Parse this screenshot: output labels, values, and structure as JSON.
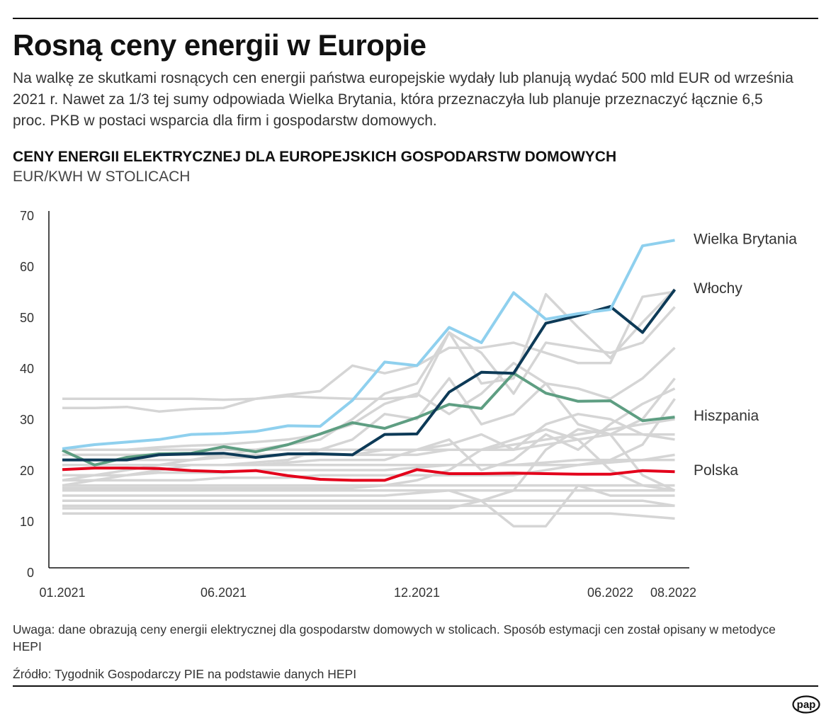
{
  "title": "Rosną ceny energii w Europie",
  "lead": "Na walkę ze skutkami rosnących cen energii państwa europejskie wydały lub planują wydać 500 mld EUR od września 2021 r. Nawet za 1/3 tej sumy odpowiada Wielka Brytania, która przeznaczyła lub planuje przeznaczyć łącznie 6,5 proc. PKB w postaci wsparcia dla firm i gospodarstw domowych.",
  "note": "Uwaga: dane obrazują ceny energii elektrycznej dla gospodarstw domowych w stolicach. Sposób estymacji cen został opisany w metodyce HEPI",
  "source": "Źródło: Tygodnik Gospodarczy PIE na podstawie danych HEPI",
  "logo": "pap",
  "chart_data": {
    "type": "line",
    "title": "CENY ENERGII ELEKTRYCZNEJ DLA EUROPEJSKICH GOSPODARSTW DOMOWYCH",
    "subtitle": "EUR/KWH W STOLICACH",
    "ylim": [
      0,
      70
    ],
    "yticks": [
      "0",
      "10",
      "20",
      "30",
      "40",
      "50",
      "60",
      "70"
    ],
    "x": [
      "01.2021",
      "02.2021",
      "03.2021",
      "04.2021",
      "05.2021",
      "06.2021",
      "07.2021",
      "08.2021",
      "09.2021",
      "10.2021",
      "11.2021",
      "12.2021",
      "01.2022",
      "02.2022",
      "03.2022",
      "04.2022",
      "05.2022",
      "06.2022",
      "07.2022",
      "08.2022"
    ],
    "xticks": [
      {
        "label": "01.2021",
        "index": 0
      },
      {
        "label": "06.2021",
        "index": 5
      },
      {
        "label": "12.2021",
        "index": 11
      },
      {
        "label": "06.2022",
        "index": 17
      },
      {
        "label": "08.2022",
        "index": 19
      }
    ],
    "grid": false,
    "legend": "direct labels at line ends (right)",
    "series": [
      {
        "name": "Wielka Brytania",
        "color": "#8fd0ee",
        "values": [
          24.2,
          25,
          25.5,
          26,
          27,
          27.2,
          27.6,
          28.7,
          28.6,
          33.7,
          41.2,
          40.5,
          48,
          45,
          54.8,
          49.6,
          50.7,
          51.5,
          64,
          65.1
        ]
      },
      {
        "name": "Włochy",
        "color": "#0d3a57",
        "values": [
          22,
          22,
          22,
          23,
          23.2,
          23.3,
          22.5,
          23.2,
          23.2,
          23,
          27,
          27.1,
          35.3,
          39.2,
          39,
          48.8,
          50.3,
          52.1,
          47,
          55.4
        ]
      },
      {
        "name": "Hiszpania",
        "color": "#5e9e82",
        "values": [
          23.9,
          21,
          22.5,
          23.2,
          23.3,
          24.6,
          23.6,
          25,
          27.1,
          29.3,
          28.2,
          30.3,
          32.9,
          32.1,
          39,
          35.1,
          33.5,
          33.6,
          29.7,
          30.4
        ]
      },
      {
        "name": "Polska",
        "color": "#e3001b",
        "values": [
          20.1,
          20.4,
          20.4,
          20.3,
          19.9,
          19.7,
          19.9,
          18.9,
          18.2,
          18,
          18,
          20.1,
          19.3,
          19.3,
          19.4,
          19.3,
          19.2,
          19.2,
          19.9,
          19.7
        ]
      }
    ],
    "other_series_color": "#d5d5d5",
    "other_series": [
      [
        34,
        34,
        34,
        34,
        34,
        33.8,
        34,
        34.5,
        34.2,
        34,
        34,
        34.5,
        47,
        37,
        38,
        54.5,
        48,
        42,
        49,
        55.5
      ],
      [
        32.2,
        32.2,
        32.4,
        31.5,
        32,
        32.2,
        34,
        34.8,
        35.5,
        40.5,
        39,
        40.5,
        44,
        44,
        45,
        43,
        41,
        41,
        54,
        55
      ],
      [
        18,
        19,
        20,
        21,
        22,
        23,
        24,
        25,
        26,
        30,
        35,
        37,
        47,
        43,
        35,
        45,
        44,
        43,
        45,
        52
      ],
      [
        24,
        24,
        24,
        24.5,
        24.8,
        25,
        25.5,
        26,
        27,
        29,
        33,
        35,
        31,
        35,
        41,
        37,
        36,
        34,
        38,
        44
      ],
      [
        17,
        18,
        19,
        20,
        21,
        21,
        21.5,
        22,
        24,
        26,
        31,
        30,
        38,
        29,
        31,
        37,
        29,
        27,
        30,
        38
      ],
      [
        24,
        24,
        24,
        24,
        24,
        24,
        24,
        24,
        24,
        24,
        24,
        24,
        24,
        24,
        24,
        25,
        26,
        27,
        27,
        27
      ],
      [
        23,
        23,
        23,
        23,
        23,
        23,
        23,
        23,
        23,
        23,
        23,
        23,
        24,
        24,
        25,
        26,
        27,
        28,
        29,
        30
      ],
      [
        22,
        22,
        22,
        22,
        22,
        22.5,
        22.5,
        23,
        23,
        23,
        24,
        24,
        25,
        27,
        24,
        29,
        31,
        30,
        27,
        26
      ],
      [
        21,
        21,
        21,
        21,
        21,
        21,
        21,
        21.5,
        22,
        22,
        22,
        24,
        26,
        20,
        22,
        27,
        24,
        29,
        33,
        36
      ],
      [
        21,
        21,
        21,
        21,
        21,
        21,
        21,
        21,
        21,
        21,
        21,
        21,
        21,
        21,
        21,
        21.5,
        22,
        22,
        22,
        22
      ],
      [
        19,
        19,
        19,
        19.5,
        19.5,
        19.5,
        20,
        20,
        20,
        20,
        20,
        20.5,
        21,
        21,
        21,
        21,
        21,
        21.5,
        22,
        23
      ],
      [
        18,
        18,
        18,
        18,
        18,
        18.5,
        18.5,
        18.5,
        19,
        19,
        19,
        19,
        19,
        19,
        19,
        20,
        21,
        22,
        25,
        34
      ],
      [
        17,
        17,
        17,
        17,
        17,
        17,
        17,
        17,
        17,
        17,
        17,
        17,
        17,
        17,
        17,
        17,
        17,
        17,
        17,
        17
      ],
      [
        16.5,
        16.5,
        16.5,
        16.5,
        16.5,
        16.5,
        16.5,
        16.5,
        16.5,
        16.5,
        17,
        18,
        20,
        24,
        26,
        28,
        26,
        20,
        17,
        16
      ],
      [
        16,
        16,
        16,
        16,
        16,
        16,
        16,
        16,
        16,
        16,
        16,
        16,
        16,
        16,
        16,
        16,
        16,
        16,
        16,
        16
      ],
      [
        15,
        15,
        15,
        15,
        15,
        15,
        15,
        15,
        15,
        15,
        15,
        15.5,
        16,
        14,
        9,
        9,
        17,
        15,
        15,
        15
      ],
      [
        14,
        14,
        14,
        14,
        14,
        14,
        14,
        14,
        14,
        14,
        14,
        14,
        14,
        14,
        14,
        14,
        14,
        14,
        14,
        13
      ],
      [
        13,
        13,
        13,
        13,
        13,
        13,
        13,
        13,
        13,
        13,
        13,
        13,
        13,
        13,
        13,
        13,
        13,
        13,
        13,
        13
      ],
      [
        11.5,
        11.5,
        11.5,
        11.5,
        11.5,
        11.5,
        11.5,
        11.5,
        11.5,
        11.5,
        11.5,
        11.5,
        11.5,
        11.5,
        11.5,
        11.5,
        11.5,
        11.5,
        11,
        10.5
      ],
      [
        12.5,
        12.5,
        12.5,
        12.5,
        12.5,
        12.5,
        12.5,
        12.5,
        12.5,
        12.5,
        12.5,
        12.5,
        12.5,
        14,
        16,
        24,
        28,
        27,
        19,
        16
      ]
    ]
  }
}
